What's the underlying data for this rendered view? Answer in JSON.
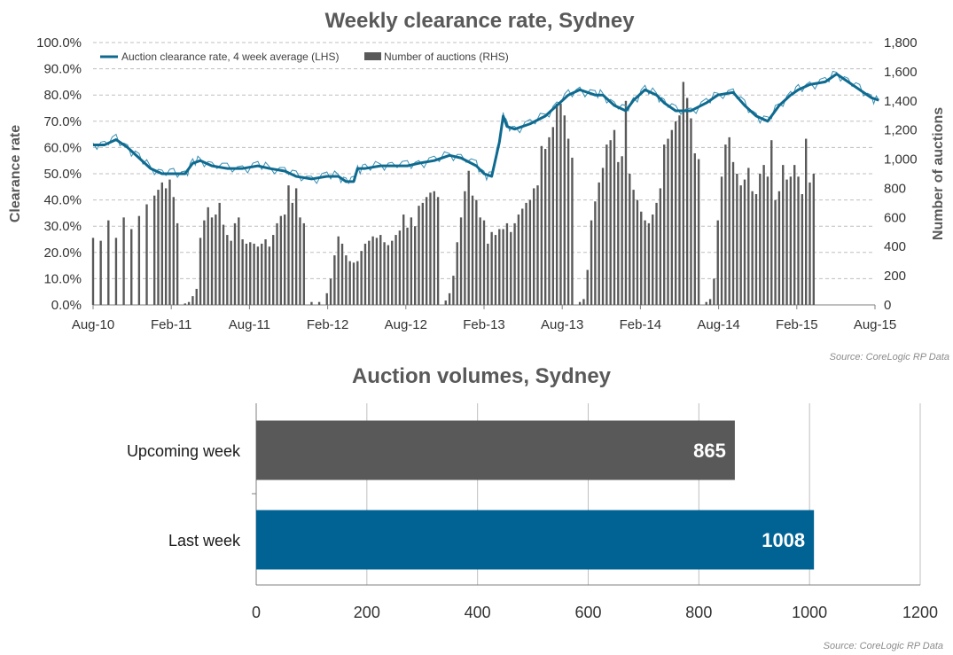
{
  "chart_data": [
    {
      "type": "line+bar",
      "title": "Weekly clearance  rate, Sydney",
      "ylabel_left": "Clearance rate",
      "ylabel_right": "Number of auctions",
      "source": "Source: CoreLogic  RP Data",
      "x_tick_labels": [
        "Aug-10",
        "Feb-11",
        "Aug-11",
        "Feb-12",
        "Aug-12",
        "Feb-13",
        "Aug-13",
        "Feb-14",
        "Aug-14",
        "Feb-15",
        "Aug-15"
      ],
      "y_left_ticks": [
        "0.0%",
        "10.0%",
        "20.0%",
        "30.0%",
        "40.0%",
        "50.0%",
        "60.0%",
        "70.0%",
        "80.0%",
        "90.0%",
        "100.0%"
      ],
      "y_right_ticks": [
        "0",
        "200",
        "400",
        "600",
        "800",
        "1,000",
        "1,200",
        "1,400",
        "1,600",
        "1,800"
      ],
      "ylim_left": [
        0,
        100
      ],
      "ylim_right": [
        0,
        1800
      ],
      "grid": "horizontal dashed",
      "legend_placement": "top-left",
      "series_names": {
        "line": "Auction clearance rate, 4 week average (LHS)",
        "bars": "Number of auctions (RHS)"
      },
      "series_colors": {
        "line": "#0e6a8f",
        "weekly_line": "#3b8fb3",
        "bars": "#595959"
      },
      "clearance_rate_4wk_avg": [
        [
          0,
          61
        ],
        [
          3,
          61
        ],
        [
          6,
          63
        ],
        [
          9,
          60
        ],
        [
          12,
          56
        ],
        [
          15,
          52
        ],
        [
          18,
          50
        ],
        [
          21,
          50
        ],
        [
          24,
          50
        ],
        [
          26,
          54
        ],
        [
          28,
          55
        ],
        [
          31,
          53
        ],
        [
          35,
          52
        ],
        [
          39,
          52
        ],
        [
          43,
          53
        ],
        [
          46,
          52
        ],
        [
          50,
          51
        ],
        [
          53,
          49
        ],
        [
          57,
          48
        ],
        [
          61,
          49
        ],
        [
          64,
          49
        ],
        [
          66,
          47
        ],
        [
          68,
          47
        ],
        [
          69,
          52
        ],
        [
          71,
          52
        ],
        [
          75,
          53
        ],
        [
          78,
          53
        ],
        [
          82,
          53
        ],
        [
          85,
          54
        ],
        [
          89,
          55
        ],
        [
          93,
          57
        ],
        [
          96,
          56
        ],
        [
          100,
          53
        ],
        [
          102,
          50
        ],
        [
          104,
          49
        ],
        [
          106,
          62
        ],
        [
          107,
          72
        ],
        [
          108,
          68
        ],
        [
          110,
          67
        ],
        [
          114,
          69
        ],
        [
          118,
          72
        ],
        [
          121,
          76
        ],
        [
          124,
          80
        ],
        [
          127,
          82
        ],
        [
          131,
          80
        ],
        [
          133,
          80
        ],
        [
          136,
          76
        ],
        [
          139,
          74
        ],
        [
          141,
          78
        ],
        [
          144,
          82
        ],
        [
          147,
          80
        ],
        [
          149,
          77
        ],
        [
          152,
          74
        ],
        [
          156,
          74
        ],
        [
          160,
          77
        ],
        [
          163,
          80
        ],
        [
          167,
          81
        ],
        [
          170,
          76
        ],
        [
          173,
          72
        ],
        [
          176,
          70
        ],
        [
          179,
          76
        ],
        [
          182,
          80
        ],
        [
          184,
          82
        ],
        [
          187,
          84
        ],
        [
          191,
          85
        ],
        [
          194,
          88
        ],
        [
          197,
          85
        ],
        [
          200,
          82
        ],
        [
          203,
          79
        ],
        [
          205,
          78
        ]
      ],
      "auctions_weekly": [
        [
          0,
          460
        ],
        [
          2,
          440
        ],
        [
          4,
          580
        ],
        [
          6,
          460
        ],
        [
          8,
          600
        ],
        [
          10,
          520
        ],
        [
          12,
          610
        ],
        [
          14,
          690
        ],
        [
          16,
          750
        ],
        [
          17,
          790
        ],
        [
          18,
          840
        ],
        [
          19,
          800
        ],
        [
          20,
          860
        ],
        [
          21,
          740
        ],
        [
          22,
          560
        ],
        [
          24,
          10
        ],
        [
          25,
          20
        ],
        [
          26,
          60
        ],
        [
          27,
          110
        ],
        [
          28,
          460
        ],
        [
          29,
          580
        ],
        [
          30,
          670
        ],
        [
          31,
          600
        ],
        [
          32,
          620
        ],
        [
          33,
          700
        ],
        [
          34,
          550
        ],
        [
          35,
          480
        ],
        [
          36,
          440
        ],
        [
          37,
          560
        ],
        [
          38,
          600
        ],
        [
          39,
          450
        ],
        [
          40,
          420
        ],
        [
          41,
          430
        ],
        [
          42,
          420
        ],
        [
          43,
          400
        ],
        [
          44,
          420
        ],
        [
          45,
          450
        ],
        [
          46,
          400
        ],
        [
          47,
          480
        ],
        [
          48,
          560
        ],
        [
          49,
          610
        ],
        [
          50,
          620
        ],
        [
          51,
          820
        ],
        [
          52,
          700
        ],
        [
          53,
          800
        ],
        [
          54,
          600
        ],
        [
          55,
          560
        ],
        [
          57,
          20
        ],
        [
          59,
          20
        ],
        [
          61,
          80
        ],
        [
          62,
          180
        ],
        [
          63,
          340
        ],
        [
          64,
          470
        ],
        [
          65,
          420
        ],
        [
          66,
          340
        ],
        [
          67,
          300
        ],
        [
          68,
          290
        ],
        [
          69,
          300
        ],
        [
          70,
          370
        ],
        [
          71,
          420
        ],
        [
          72,
          440
        ],
        [
          73,
          470
        ],
        [
          74,
          460
        ],
        [
          75,
          480
        ],
        [
          76,
          430
        ],
        [
          77,
          410
        ],
        [
          78,
          440
        ],
        [
          79,
          480
        ],
        [
          80,
          510
        ],
        [
          81,
          620
        ],
        [
          82,
          530
        ],
        [
          83,
          600
        ],
        [
          84,
          540
        ],
        [
          85,
          680
        ],
        [
          86,
          700
        ],
        [
          87,
          740
        ],
        [
          88,
          770
        ],
        [
          89,
          780
        ],
        [
          90,
          740
        ],
        [
          92,
          30
        ],
        [
          93,
          80
        ],
        [
          94,
          200
        ],
        [
          95,
          430
        ],
        [
          96,
          600
        ],
        [
          97,
          780
        ],
        [
          98,
          920
        ],
        [
          99,
          750
        ],
        [
          100,
          720
        ],
        [
          101,
          600
        ],
        [
          102,
          580
        ],
        [
          103,
          420
        ],
        [
          104,
          500
        ],
        [
          105,
          480
        ],
        [
          106,
          520
        ],
        [
          107,
          520
        ],
        [
          108,
          560
        ],
        [
          109,
          500
        ],
        [
          110,
          560
        ],
        [
          111,
          620
        ],
        [
          112,
          660
        ],
        [
          113,
          700
        ],
        [
          114,
          720
        ],
        [
          115,
          800
        ],
        [
          116,
          820
        ],
        [
          117,
          1090
        ],
        [
          118,
          1070
        ],
        [
          119,
          1150
        ],
        [
          120,
          1220
        ],
        [
          121,
          1380
        ],
        [
          122,
          1380
        ],
        [
          123,
          1300
        ],
        [
          124,
          1140
        ],
        [
          125,
          1010
        ],
        [
          127,
          20
        ],
        [
          128,
          40
        ],
        [
          129,
          240
        ],
        [
          130,
          580
        ],
        [
          131,
          710
        ],
        [
          132,
          840
        ],
        [
          133,
          940
        ],
        [
          134,
          1100
        ],
        [
          135,
          1130
        ],
        [
          136,
          1200
        ],
        [
          137,
          980
        ],
        [
          138,
          1020
        ],
        [
          139,
          1400
        ],
        [
          140,
          900
        ],
        [
          141,
          790
        ],
        [
          142,
          720
        ],
        [
          143,
          640
        ],
        [
          144,
          580
        ],
        [
          145,
          560
        ],
        [
          146,
          620
        ],
        [
          147,
          700
        ],
        [
          148,
          800
        ],
        [
          149,
          1100
        ],
        [
          150,
          1140
        ],
        [
          151,
          1200
        ],
        [
          152,
          1260
        ],
        [
          153,
          1300
        ],
        [
          154,
          1530
        ],
        [
          155,
          1420
        ],
        [
          156,
          1280
        ],
        [
          157,
          1040
        ],
        [
          158,
          1000
        ],
        [
          160,
          20
        ],
        [
          161,
          40
        ],
        [
          162,
          180
        ],
        [
          163,
          580
        ],
        [
          164,
          880
        ],
        [
          165,
          1100
        ],
        [
          166,
          1150
        ],
        [
          167,
          980
        ],
        [
          168,
          900
        ],
        [
          169,
          820
        ],
        [
          170,
          860
        ],
        [
          171,
          940
        ],
        [
          172,
          780
        ],
        [
          173,
          760
        ],
        [
          174,
          900
        ],
        [
          175,
          960
        ],
        [
          176,
          880
        ],
        [
          177,
          1130
        ],
        [
          178,
          720
        ],
        [
          179,
          780
        ],
        [
          180,
          960
        ],
        [
          181,
          860
        ],
        [
          182,
          880
        ],
        [
          183,
          960
        ],
        [
          184,
          880
        ],
        [
          185,
          760
        ],
        [
          186,
          1140
        ],
        [
          187,
          840
        ],
        [
          188,
          900
        ]
      ],
      "n_weeks": 205
    },
    {
      "type": "bar",
      "orientation": "horizontal",
      "title": "Auction volumes, Sydney",
      "categories": [
        "Upcoming week",
        "Last week"
      ],
      "values": [
        865,
        1008
      ],
      "colors": [
        "#595959",
        "#006394"
      ],
      "xlim": [
        0,
        1200
      ],
      "x_tick_labels": [
        "0",
        "200",
        "400",
        "600",
        "800",
        "1000",
        "1200"
      ],
      "source": "Source: CoreLogic  RP Data"
    }
  ]
}
